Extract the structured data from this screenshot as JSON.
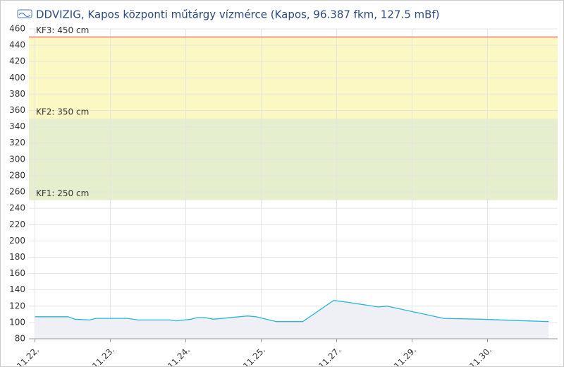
{
  "chart_data": {
    "type": "area",
    "title": "DDVIZIG, Kapos központi műtárgy vízmérce (Kapos, 96.387 fkm, 127.5 mBf)",
    "xlim": [
      -0.08,
      6.93
    ],
    "xticks": [
      {
        "value": 0,
        "label": "11.22."
      },
      {
        "value": 1,
        "label": "11.23."
      },
      {
        "value": 2,
        "label": "11.24."
      },
      {
        "value": 3,
        "label": "11.25."
      },
      {
        "value": 4,
        "label": "11.27."
      },
      {
        "value": 5,
        "label": "11.29."
      },
      {
        "value": 6,
        "label": "11.30."
      }
    ],
    "ylim": [
      80,
      460
    ],
    "yticks": [
      80,
      100,
      120,
      140,
      160,
      180,
      200,
      220,
      240,
      260,
      280,
      300,
      320,
      340,
      360,
      380,
      400,
      420,
      440,
      460
    ],
    "grid": true,
    "color": "#2bb5d8",
    "fill": "#eef0f5",
    "bands": [
      {
        "from": 350,
        "to": 450,
        "color": "#fbf8c4"
      },
      {
        "from": 250,
        "to": 350,
        "color": "#e6efcd"
      }
    ],
    "thresholds": [
      {
        "value": 450,
        "label": "KF3: 450 cm",
        "color": "#e8a08c"
      },
      {
        "value": 350,
        "label": "KF2: 350 cm"
      },
      {
        "value": 250,
        "label": "KF1: 250 cm"
      }
    ],
    "x": [
      0,
      0.44,
      0.53,
      0.72,
      0.81,
      1.23,
      1.37,
      1.79,
      1.87,
      1.98,
      2.07,
      2.15,
      2.26,
      2.36,
      2.82,
      2.93,
      3.2,
      3.55,
      3.96,
      4.13,
      4.55,
      4.67,
      5.42,
      5.91,
      6.81
    ],
    "values": [
      107,
      107,
      104,
      103,
      105,
      105,
      103,
      103,
      102,
      103,
      104,
      106,
      106,
      104,
      108,
      107,
      101,
      101,
      127,
      125,
      119,
      120,
      105,
      104,
      101
    ]
  }
}
